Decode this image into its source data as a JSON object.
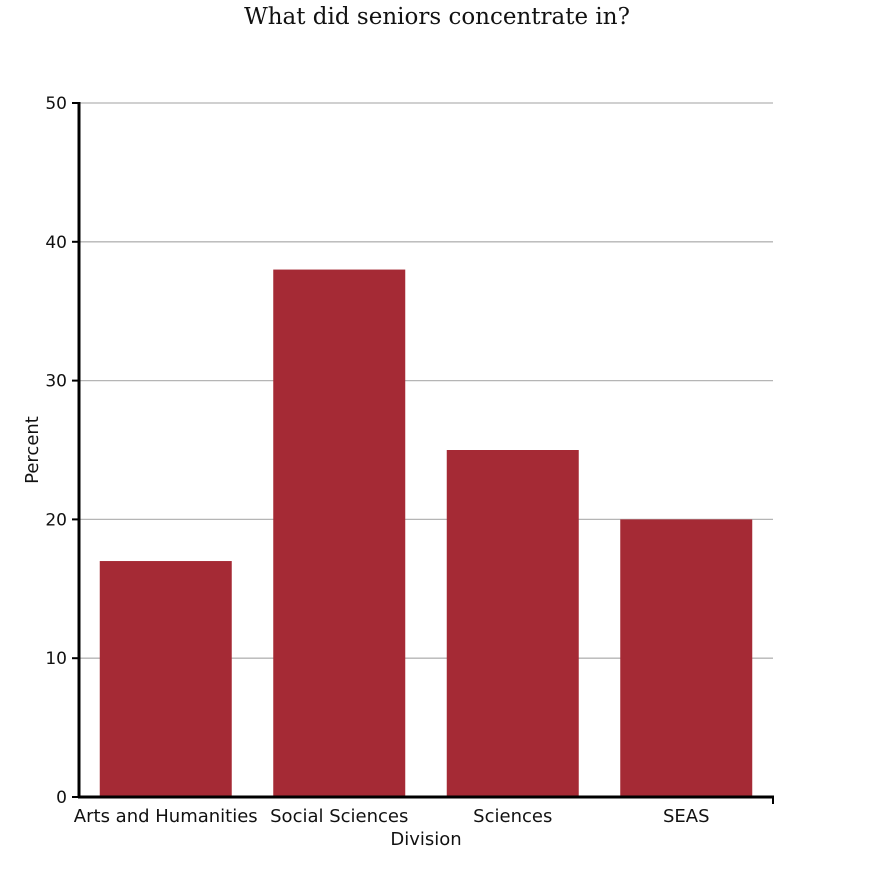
{
  "chart_data": {
    "type": "bar",
    "title": "What did seniors concentrate in?",
    "xlabel": "Division",
    "ylabel": "Percent",
    "categories": [
      "Arts and Humanities",
      "Social Sciences",
      "Sciences",
      "SEAS"
    ],
    "values": [
      17,
      38,
      25,
      20
    ],
    "ylim": [
      0,
      50
    ],
    "yticks": [
      0,
      10,
      20,
      30,
      40,
      50
    ],
    "grid": true,
    "colors": {
      "bar": "#a52a35",
      "grid": "#b5b5b5",
      "axis": "#000000"
    }
  }
}
